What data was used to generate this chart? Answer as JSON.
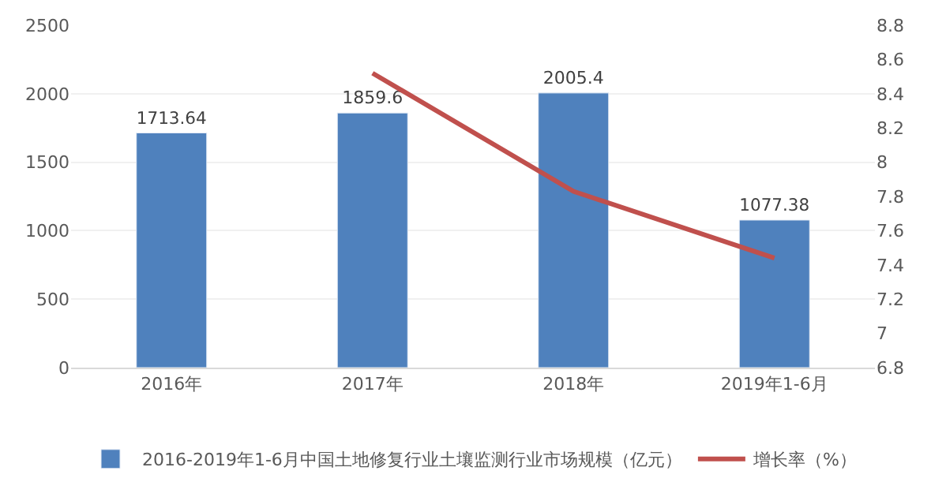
{
  "chart_data": {
    "type": "bar",
    "categories": [
      "2016年",
      "2017年",
      "2018年",
      "2019年1-6月"
    ],
    "series": [
      {
        "name": "2016-2019年1-6月中国土地修复行业土壤监测行业市场规模（亿元）",
        "color": "#4f81bd",
        "values": [
          1713.64,
          1859.6,
          2005.4,
          1077.38
        ],
        "value_labels": [
          "1713.64",
          "1859.6",
          "2005.4",
          "1077.38"
        ]
      },
      {
        "name": "增长率（%）",
        "type": "line",
        "axis": "y2",
        "color": "#c0504d",
        "values": [
          null,
          8.52,
          7.83,
          7.44
        ]
      }
    ],
    "ylim": [
      0,
      2500
    ],
    "yticks": [
      0,
      500,
      1000,
      1500,
      2000,
      2500
    ],
    "y2lim": [
      6.8,
      8.8
    ],
    "y2ticks": [
      6.8,
      7,
      7.2,
      7.4,
      7.6,
      7.8,
      8,
      8.2,
      8.4,
      8.6,
      8.8
    ],
    "grid": "y",
    "legend": "bottom",
    "marker": "none"
  }
}
